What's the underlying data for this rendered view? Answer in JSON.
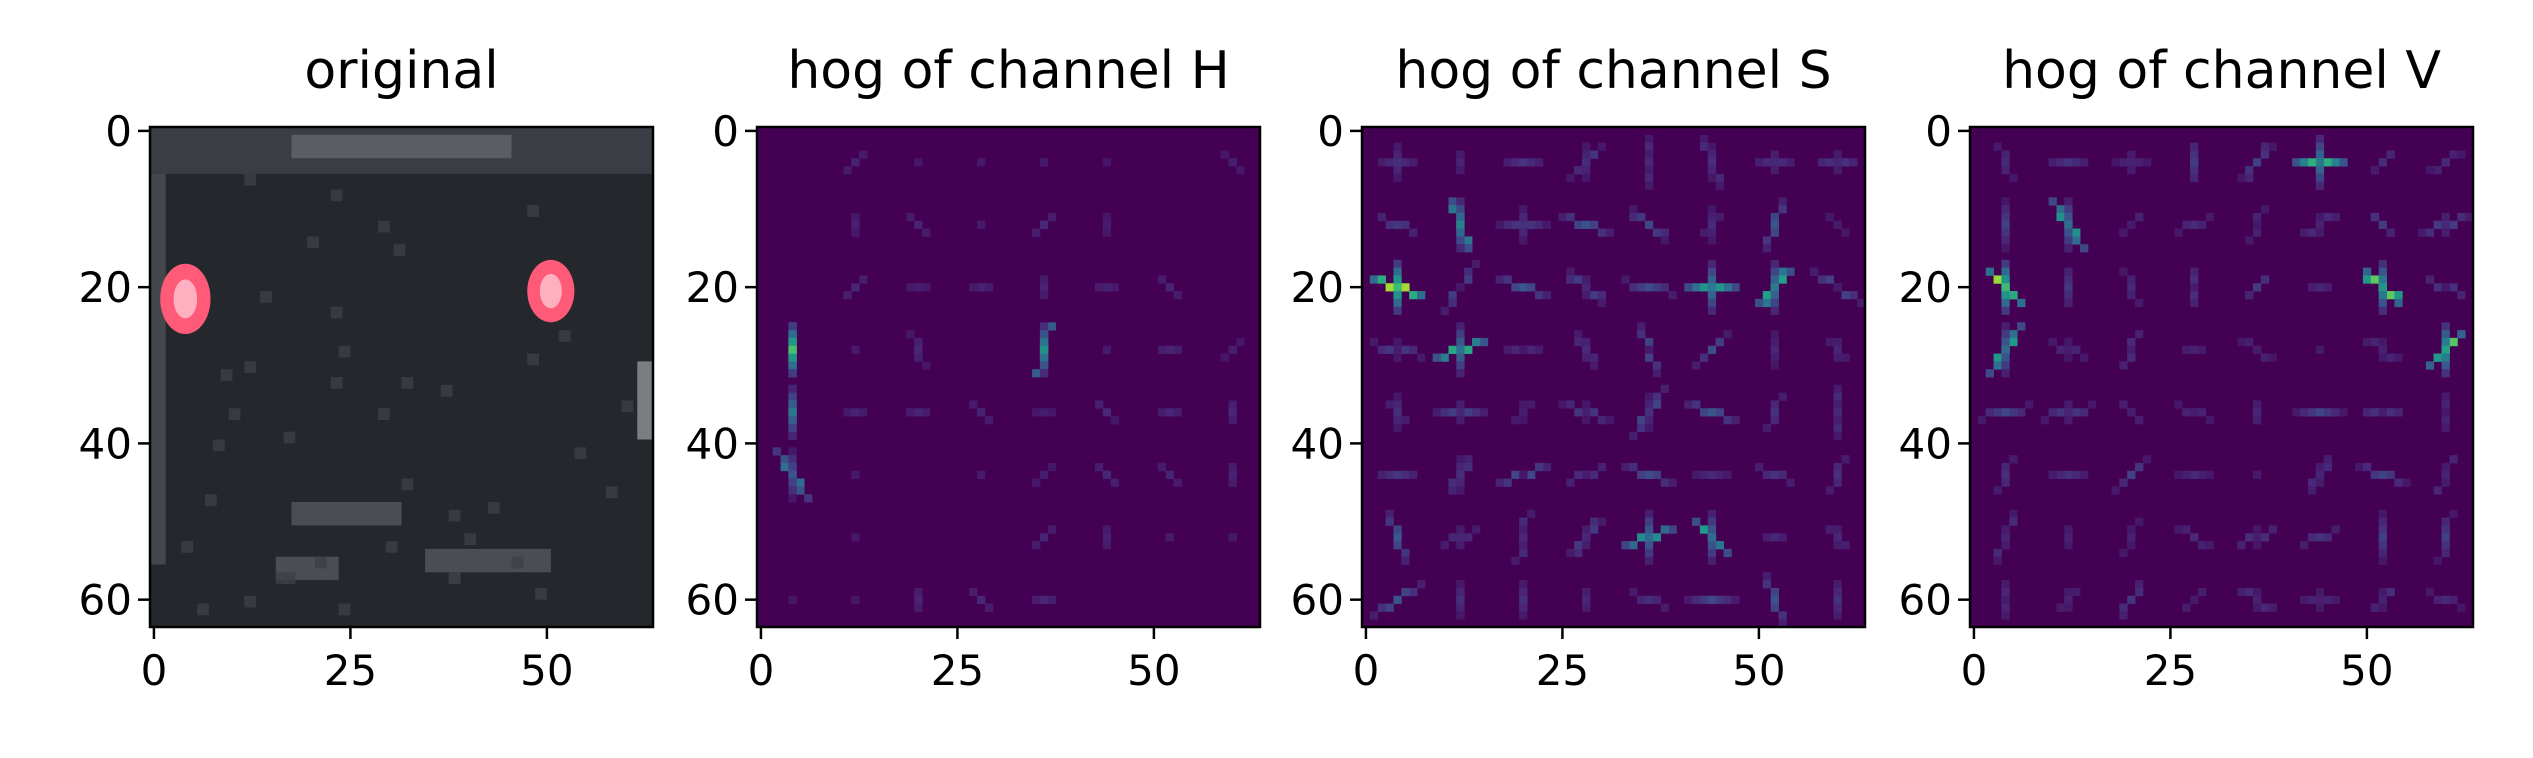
{
  "chart_data": [
    {
      "type": "heatmap",
      "title": "original",
      "image": "car-rear-rgb",
      "xlim": [
        0,
        63
      ],
      "ylim": [
        63,
        0
      ],
      "xticks": [
        0,
        25,
        50
      ],
      "yticks": [
        0,
        20,
        40,
        60
      ],
      "colors": {
        "body": "#24272c",
        "light": "#ff5a78",
        "bumper": "#4a4d52",
        "border": "#000000"
      }
    },
    {
      "type": "heatmap",
      "title": "hog of channel H",
      "colormap": "viridis",
      "xlim": [
        0,
        63
      ],
      "ylim": [
        63,
        0
      ],
      "xticks": [
        0,
        25,
        50
      ],
      "yticks": [
        0,
        20,
        40,
        60
      ],
      "colors": {
        "background": "#440154",
        "low": "#3b528b",
        "mid": "#21918c",
        "high": "#fde725"
      }
    },
    {
      "type": "heatmap",
      "title": "hog of channel S",
      "colormap": "viridis",
      "xlim": [
        0,
        63
      ],
      "ylim": [
        63,
        0
      ],
      "xticks": [
        0,
        25,
        50
      ],
      "yticks": [
        0,
        20,
        40,
        60
      ],
      "colors": {
        "background": "#440154",
        "low": "#3b528b",
        "mid": "#21918c",
        "high": "#fde725"
      }
    },
    {
      "type": "heatmap",
      "title": "hog of channel V",
      "colormap": "viridis",
      "xlim": [
        0,
        63
      ],
      "ylim": [
        63,
        0
      ],
      "xticks": [
        0,
        25,
        50
      ],
      "yticks": [
        0,
        20,
        40,
        60
      ],
      "colors": {
        "background": "#440154",
        "low": "#3b528b",
        "mid": "#21918c",
        "high": "#fde725"
      }
    }
  ]
}
